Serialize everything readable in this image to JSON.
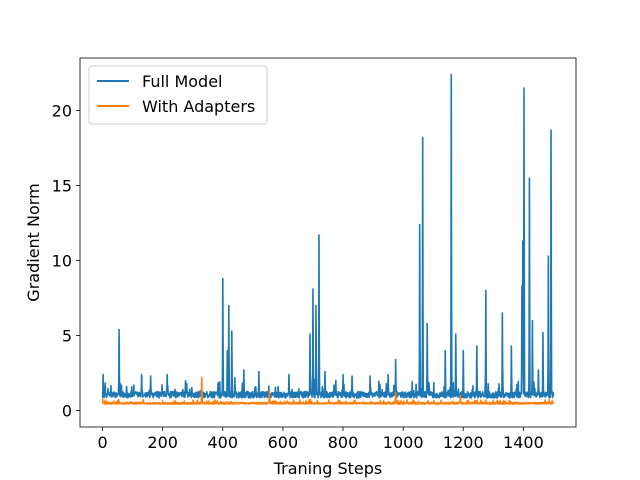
{
  "chart_data": {
    "type": "line",
    "title": "",
    "xlabel": "Traning Steps",
    "ylabel": "Gradient Norm",
    "xlim": [
      -75,
      1575
    ],
    "ylim": [
      -1.1,
      23.5
    ],
    "xticks": [
      0,
      200,
      400,
      600,
      800,
      1000,
      1200,
      1400
    ],
    "yticks": [
      0,
      5,
      10,
      15,
      20
    ],
    "grid": false,
    "legend_position": "top-left",
    "series": [
      {
        "name": "Full Model",
        "color": "#1f77b4",
        "baseline": 1.05,
        "noise": 0.35,
        "spikes": [
          [
            2,
            2.4
          ],
          [
            55,
            5.4
          ],
          [
            80,
            1.6
          ],
          [
            130,
            2.4
          ],
          [
            160,
            2.3
          ],
          [
            215,
            2.4
          ],
          [
            280,
            1.8
          ],
          [
            400,
            8.8
          ],
          [
            415,
            4.0
          ],
          [
            420,
            7.0
          ],
          [
            430,
            5.3
          ],
          [
            440,
            2.2
          ],
          [
            470,
            2.7
          ],
          [
            520,
            2.6
          ],
          [
            620,
            2.4
          ],
          [
            690,
            5.1
          ],
          [
            700,
            8.1
          ],
          [
            710,
            7.0
          ],
          [
            720,
            11.7
          ],
          [
            740,
            2.6
          ],
          [
            800,
            2.4
          ],
          [
            830,
            2.3
          ],
          [
            890,
            2.3
          ],
          [
            950,
            2.4
          ],
          [
            975,
            3.4
          ],
          [
            1055,
            12.4
          ],
          [
            1065,
            18.2
          ],
          [
            1080,
            5.8
          ],
          [
            1140,
            4.0
          ],
          [
            1160,
            22.4
          ],
          [
            1175,
            5.1
          ],
          [
            1200,
            4.0
          ],
          [
            1245,
            4.3
          ],
          [
            1275,
            8.0
          ],
          [
            1330,
            6.5
          ],
          [
            1360,
            4.3
          ],
          [
            1395,
            8.3
          ],
          [
            1398,
            11.3
          ],
          [
            1402,
            21.5
          ],
          [
            1420,
            15.5
          ],
          [
            1430,
            6.0
          ],
          [
            1450,
            2.7
          ],
          [
            1465,
            5.2
          ],
          [
            1483,
            10.3
          ],
          [
            1492,
            18.7
          ]
        ]
      },
      {
        "name": "With Adapters",
        "color": "#ff7f0e",
        "baseline": 0.48,
        "noise": 0.09,
        "spikes": [
          [
            0,
            0.8
          ],
          [
            330,
            2.2
          ],
          [
            555,
            1.3
          ],
          [
            975,
            1.2
          ],
          [
            1190,
            1.0
          ]
        ]
      }
    ],
    "x_range": [
      0,
      1500
    ]
  }
}
